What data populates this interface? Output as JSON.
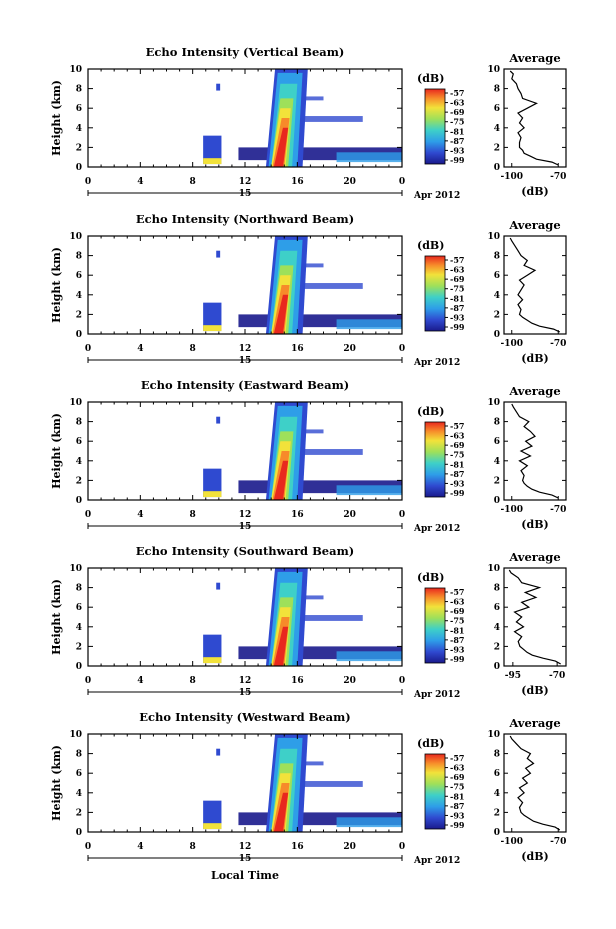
{
  "figure": {
    "xlabel": "Local Time",
    "date_label": "Apr 2012",
    "day_label": "15",
    "colorbar_unit": "(dB)",
    "avg_title": "Average",
    "avg_xlabel": "(dB)",
    "ylabel": "Height (km)"
  },
  "chart_data": [
    {
      "type": "heatmap",
      "title": "Echo Intensity (Vertical Beam)",
      "ylabel": "Height (km)",
      "xlabel": "",
      "x_ticks": [
        "0",
        "4",
        "8",
        "12",
        "16",
        "20",
        "0"
      ],
      "y_ticks": [
        "0",
        "2",
        "4",
        "6",
        "8",
        "10"
      ],
      "xlim": [
        0,
        24
      ],
      "ylim": [
        0,
        10
      ],
      "colorbar": {
        "unit": "(dB)",
        "ticks": [
          "-57",
          "-63",
          "-69",
          "-75",
          "-81",
          "-87",
          "-93",
          "-99"
        ]
      },
      "average": {
        "title": "Average",
        "xlabel": "(dB)",
        "x_ticks": [
          "-100",
          "-70"
        ],
        "xlim": [
          -105,
          -65
        ],
        "y_ticks": [
          "0",
          "2",
          "4",
          "6",
          "8",
          "10"
        ],
        "heights": [
          0.2,
          0.5,
          0.8,
          1.1,
          1.4,
          1.7,
          2.0,
          2.5,
          3.0,
          3.5,
          4.0,
          4.5,
          5.0,
          5.5,
          6.0,
          6.5,
          7.0,
          7.5,
          8.0,
          8.5,
          9.0,
          9.5,
          9.8
        ],
        "values": [
          -70,
          -74,
          -84,
          -88,
          -92,
          -93,
          -95,
          -95,
          -94,
          -96,
          -92,
          -95,
          -93,
          -96,
          -90,
          -84,
          -93,
          -94,
          -96,
          -97,
          -100,
          -99,
          -101
        ]
      }
    },
    {
      "type": "heatmap",
      "title": "Echo Intensity (Northward Beam)",
      "ylabel": "Height (km)",
      "xlabel": "",
      "x_ticks": [
        "0",
        "4",
        "8",
        "12",
        "16",
        "20",
        "0"
      ],
      "y_ticks": [
        "0",
        "2",
        "4",
        "6",
        "8",
        "10"
      ],
      "xlim": [
        0,
        24
      ],
      "ylim": [
        0,
        10
      ],
      "colorbar": {
        "unit": "(dB)",
        "ticks": [
          "-57",
          "-63",
          "-69",
          "-75",
          "-81",
          "-87",
          "-93",
          "-99"
        ]
      },
      "average": {
        "title": "Average",
        "xlabel": "(dB)",
        "x_ticks": [
          "-100",
          "-70"
        ],
        "xlim": [
          -105,
          -65
        ],
        "y_ticks": [
          "0",
          "2",
          "4",
          "6",
          "8",
          "10"
        ],
        "heights": [
          0.2,
          0.5,
          0.8,
          1.1,
          1.4,
          1.7,
          2.0,
          2.5,
          3.0,
          3.5,
          4.0,
          4.5,
          5.0,
          5.5,
          6.0,
          6.5,
          7.0,
          7.5,
          8.0,
          8.5,
          9.0,
          9.5,
          9.8
        ],
        "values": [
          -69,
          -73,
          -82,
          -87,
          -90,
          -93,
          -95,
          -94,
          -96,
          -93,
          -96,
          -94,
          -92,
          -95,
          -90,
          -85,
          -92,
          -90,
          -94,
          -96,
          -98,
          -100,
          -101
        ]
      }
    },
    {
      "type": "heatmap",
      "title": "Echo Intensity (Eastward Beam)",
      "ylabel": "Height (km)",
      "xlabel": "",
      "x_ticks": [
        "0",
        "4",
        "8",
        "12",
        "16",
        "20",
        "0"
      ],
      "y_ticks": [
        "0",
        "2",
        "4",
        "6",
        "8",
        "10"
      ],
      "xlim": [
        0,
        24
      ],
      "ylim": [
        0,
        10
      ],
      "colorbar": {
        "unit": "(dB)",
        "ticks": [
          "-57",
          "-63",
          "-69",
          "-75",
          "-81",
          "-87",
          "-93",
          "-99"
        ]
      },
      "average": {
        "title": "Average",
        "xlabel": "(dB)",
        "x_ticks": [
          "-100",
          "-70"
        ],
        "xlim": [
          -105,
          -65
        ],
        "y_ticks": [
          "0",
          "2",
          "4",
          "6",
          "8",
          "10"
        ],
        "heights": [
          0.2,
          0.5,
          0.8,
          1.1,
          1.4,
          1.7,
          2.0,
          2.5,
          3.0,
          3.5,
          4.0,
          4.5,
          5.0,
          5.5,
          6.0,
          6.5,
          7.0,
          7.5,
          8.0,
          8.5,
          9.0,
          9.5,
          9.8
        ],
        "values": [
          -70,
          -74,
          -82,
          -87,
          -90,
          -92,
          -93,
          -92,
          -94,
          -90,
          -95,
          -88,
          -94,
          -87,
          -91,
          -85,
          -88,
          -92,
          -89,
          -95,
          -97,
          -99,
          -100
        ]
      }
    },
    {
      "type": "heatmap",
      "title": "Echo Intensity (Southward Beam)",
      "ylabel": "Height (km)",
      "xlabel": "",
      "x_ticks": [
        "0",
        "4",
        "8",
        "12",
        "16",
        "20",
        "0"
      ],
      "y_ticks": [
        "0",
        "2",
        "4",
        "6",
        "8",
        "10"
      ],
      "xlim": [
        0,
        24
      ],
      "ylim": [
        0,
        10
      ],
      "colorbar": {
        "unit": "(dB)",
        "ticks": [
          "-57",
          "-63",
          "-69",
          "-75",
          "-81",
          "-87",
          "-93",
          "-99"
        ]
      },
      "average": {
        "title": "Average",
        "xlabel": "(dB)",
        "x_ticks": [
          "-95",
          "-70"
        ],
        "xlim": [
          -100,
          -65
        ],
        "y_ticks": [
          "0",
          "2",
          "4",
          "6",
          "8",
          "10"
        ],
        "heights": [
          0.2,
          0.5,
          0.8,
          1.1,
          1.4,
          1.7,
          2.0,
          2.5,
          3.0,
          3.5,
          4.0,
          4.5,
          5.0,
          5.5,
          6.0,
          6.5,
          7.0,
          7.5,
          8.0,
          8.5,
          9.0,
          9.5,
          9.8
        ],
        "values": [
          -68,
          -71,
          -78,
          -84,
          -87,
          -89,
          -91,
          -92,
          -90,
          -94,
          -89,
          -93,
          -90,
          -94,
          -86,
          -90,
          -82,
          -88,
          -80,
          -90,
          -92,
          -96,
          -97
        ]
      }
    },
    {
      "type": "heatmap",
      "title": "Echo Intensity (Westward Beam)",
      "ylabel": "Height (km)",
      "xlabel": "Local Time",
      "x_ticks": [
        "0",
        "4",
        "8",
        "12",
        "16",
        "20",
        "0"
      ],
      "y_ticks": [
        "0",
        "2",
        "4",
        "6",
        "8",
        "10"
      ],
      "xlim": [
        0,
        24
      ],
      "ylim": [
        0,
        10
      ],
      "colorbar": {
        "unit": "(dB)",
        "ticks": [
          "-57",
          "-63",
          "-69",
          "-75",
          "-81",
          "-87",
          "-93",
          "-99"
        ]
      },
      "average": {
        "title": "Average",
        "xlabel": "(dB)",
        "x_ticks": [
          "-100",
          "-70"
        ],
        "xlim": [
          -105,
          -65
        ],
        "y_ticks": [
          "0",
          "2",
          "4",
          "6",
          "8",
          "10"
        ],
        "heights": [
          0.2,
          0.5,
          0.8,
          1.1,
          1.4,
          1.7,
          2.0,
          2.5,
          3.0,
          3.5,
          4.0,
          4.5,
          5.0,
          5.5,
          6.0,
          6.5,
          7.0,
          7.5,
          8.0,
          8.5,
          9.0,
          9.5,
          9.8
        ],
        "values": [
          -69,
          -72,
          -80,
          -86,
          -89,
          -92,
          -94,
          -95,
          -93,
          -96,
          -92,
          -95,
          -90,
          -93,
          -88,
          -91,
          -86,
          -90,
          -88,
          -94,
          -97,
          -100,
          -101
        ]
      }
    }
  ]
}
